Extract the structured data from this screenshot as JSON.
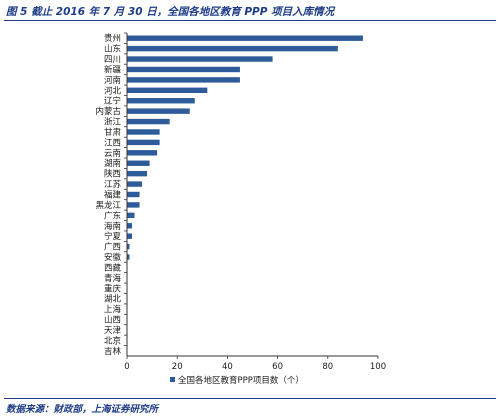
{
  "figure": {
    "title": "图 5  截止 2016 年 7 月 30 日，全国各地区教育 PPP 项目入库情况",
    "source": "数据来源：财政部，上海证券研究所"
  },
  "colors": {
    "bar": "#2e5c9a",
    "axis": "#333333",
    "text_accent": "#1f3c88"
  },
  "chart_data": {
    "type": "bar",
    "orientation": "horizontal",
    "categories": [
      "贵州",
      "山东",
      "四川",
      "新疆",
      "河南",
      "河北",
      "辽宁",
      "内蒙古",
      "浙江",
      "甘肃",
      "江西",
      "云南",
      "湖南",
      "陕西",
      "江苏",
      "福建",
      "黑龙江",
      "广东",
      "海南",
      "宁夏",
      "广西",
      "安徽",
      "西藏",
      "青海",
      "重庆",
      "湖北",
      "上海",
      "山西",
      "天津",
      "北京",
      "吉林"
    ],
    "series": [
      {
        "name": "全国各地区教育PPP项目数（个）",
        "values": [
          94,
          84,
          58,
          45,
          45,
          32,
          27,
          25,
          17,
          13,
          13,
          12,
          9,
          8,
          6,
          5,
          5,
          3,
          2,
          2,
          1,
          1,
          0,
          0,
          0,
          0,
          0,
          0,
          0,
          0,
          0
        ]
      }
    ],
    "xlim": [
      0,
      100
    ],
    "xticks": [
      0,
      20,
      40,
      60,
      80,
      100
    ],
    "legend": "bottom",
    "grid": false
  }
}
